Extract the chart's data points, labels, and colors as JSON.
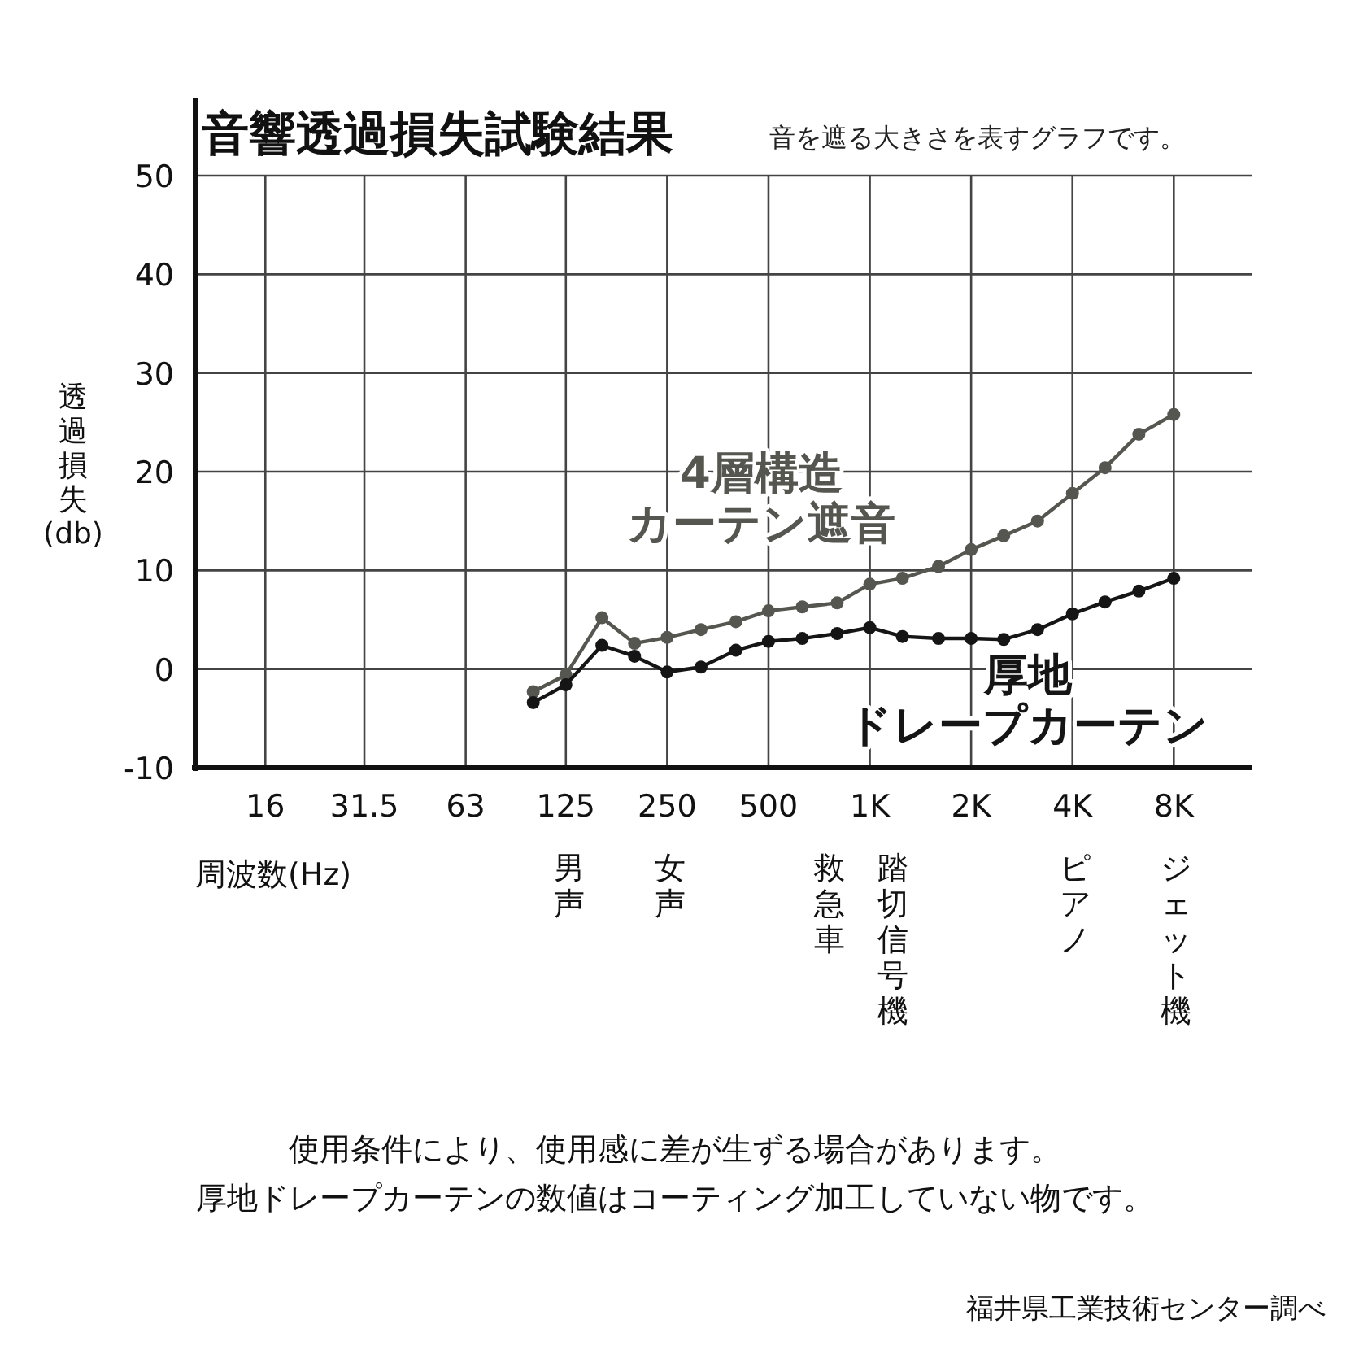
{
  "chart_data": {
    "type": "line",
    "title": "音響透過損失試験結果",
    "subtitle": "音を遮る大きさを表すグラフです。",
    "xlabel": "周波数(Hz)",
    "ylabel": "透過損失(db)",
    "log": "x",
    "xlim": [
      9.9,
      13700
    ],
    "ylim": [
      -10,
      50
    ],
    "xticks": [
      16,
      31.5,
      63,
      125,
      250,
      500,
      {
        "value": 1000,
        "label": "1K"
      },
      {
        "value": 2000,
        "label": "2K"
      },
      {
        "value": 4000,
        "label": "4K"
      },
      {
        "value": 8000,
        "label": "8K"
      }
    ],
    "yticks": [
      -10,
      0,
      10,
      20,
      30,
      40,
      50
    ],
    "grid": true,
    "marker": "circle",
    "line_style": "solid",
    "x": [
      100,
      125,
      160,
      200,
      250,
      315,
      400,
      500,
      630,
      800,
      1000,
      1250,
      1600,
      2000,
      2500,
      3150,
      4000,
      5000,
      6300,
      8000
    ],
    "series": [
      {
        "name": "4層構造カーテン遮音",
        "color": "#55564f",
        "values": [
          -2.3,
          -0.6,
          5.2,
          2.6,
          3.2,
          4.0,
          4.8,
          5.9,
          6.3,
          6.7,
          8.6,
          9.2,
          10.4,
          12.1,
          13.5,
          15.0,
          17.8,
          20.4,
          23.8,
          25.8
        ]
      },
      {
        "name": "厚地ドレープカーテン",
        "color": "#151515",
        "values": [
          -3.4,
          -1.6,
          2.4,
          1.3,
          -0.3,
          0.2,
          1.9,
          2.8,
          3.1,
          3.6,
          4.2,
          3.3,
          3.1,
          3.1,
          3.0,
          4.0,
          5.6,
          6.8,
          7.9,
          9.2
        ]
      }
    ],
    "annotations": [
      "男声",
      "女声",
      "救急車",
      "踏切信号機",
      "ピアノ",
      "ジェット機",
      "使用条件により、使用感に差が生ずる場合があります。",
      "厚地ドレープカーテンの数値はコーティング加工していない物です。",
      "福井県工業技術センター調べ"
    ]
  }
}
